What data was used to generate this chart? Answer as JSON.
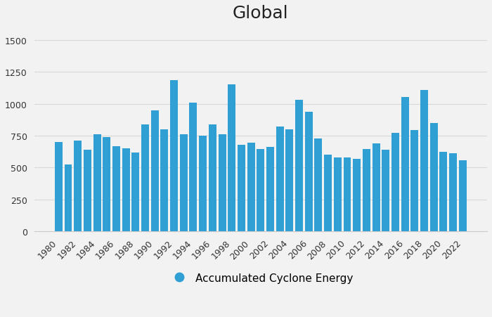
{
  "title": "Global",
  "legend_label": "Accumulated Cyclone Energy",
  "bar_color": "#2f9fd4",
  "background_color": "#f2f2f2",
  "years": [
    1980,
    1981,
    1982,
    1983,
    1984,
    1985,
    1986,
    1987,
    1988,
    1989,
    1990,
    1991,
    1992,
    1993,
    1994,
    1995,
    1996,
    1997,
    1998,
    1999,
    2000,
    2001,
    2002,
    2003,
    2004,
    2005,
    2006,
    2007,
    2008,
    2009,
    2010,
    2011,
    2012,
    2013,
    2014,
    2015,
    2016,
    2017,
    2018,
    2019,
    2020,
    2021,
    2022
  ],
  "values": [
    700,
    525,
    710,
    640,
    760,
    740,
    670,
    650,
    620,
    840,
    950,
    800,
    1185,
    760,
    1010,
    750,
    840,
    760,
    1150,
    680,
    695,
    645,
    660,
    820,
    800,
    1030,
    940,
    730,
    600,
    580,
    580,
    570,
    645,
    690,
    640,
    770,
    1055,
    795,
    1110,
    850,
    625,
    610,
    560
  ],
  "ylim": [
    0,
    1600
  ],
  "yticks": [
    0,
    250,
    500,
    750,
    1000,
    1250,
    1500
  ],
  "title_fontsize": 18,
  "legend_fontsize": 11,
  "tick_fontsize": 9,
  "grid_color": "#d8d8d8",
  "spine_color": "#cccccc"
}
